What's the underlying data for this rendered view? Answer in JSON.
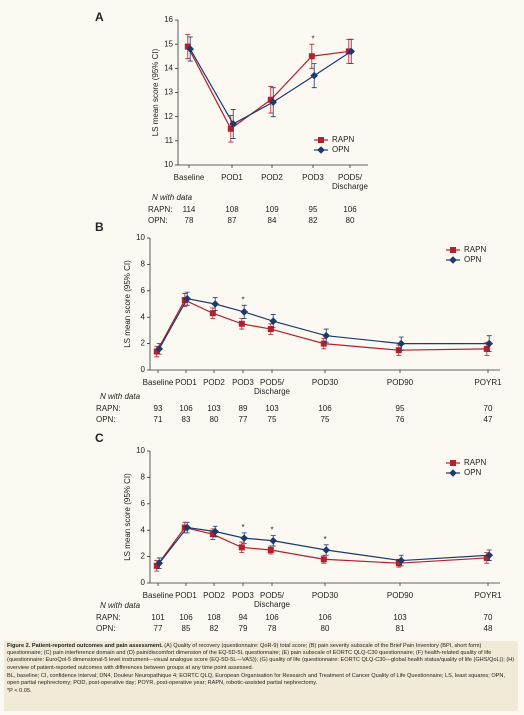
{
  "chart_data": [
    {
      "type": "line",
      "panel_label": "A",
      "ylabel": "LS mean score (95% CI)",
      "categories": [
        "Baseline",
        "POD1",
        "POD2",
        "POD3",
        "POD5/ Discharge"
      ],
      "ylim": [
        10,
        16
      ],
      "yticks": [
        10,
        11,
        12,
        13,
        14,
        15,
        16
      ],
      "legend": "lower right",
      "series": [
        {
          "name": "RAPN",
          "color": "#b3202e",
          "marker": "square",
          "values": [
            14.9,
            11.5,
            12.7,
            14.5,
            14.7
          ],
          "errors": [
            0.5,
            0.55,
            0.55,
            0.5,
            0.5
          ]
        },
        {
          "name": "OPN",
          "color": "#1d3a6b",
          "marker": "diamond",
          "values": [
            14.8,
            11.7,
            12.6,
            13.7,
            14.7
          ],
          "errors": [
            0.5,
            0.6,
            0.6,
            0.5,
            0.5
          ]
        }
      ],
      "annotations": [
        {
          "text": "*",
          "at": "POD3"
        }
      ],
      "n_data": {
        "title": "N with data",
        "rows": [
          {
            "label": "RAPN:",
            "color": "#b3202e",
            "values": [
              114,
              108,
              109,
              95,
              106
            ]
          },
          {
            "label": "OPN:",
            "color": "#1d3a6b",
            "values": [
              78,
              87,
              84,
              82,
              80
            ]
          }
        ]
      }
    },
    {
      "type": "line",
      "panel_label": "B",
      "ylabel": "LS mean score (95% CI)",
      "categories": [
        "Baseline",
        "POD1",
        "POD2",
        "POD3",
        "POD5/ Discharge",
        "POD30",
        "POD90",
        "POYR1"
      ],
      "ylim": [
        0,
        10
      ],
      "yticks": [
        0,
        2,
        4,
        6,
        8,
        10
      ],
      "legend": "upper right",
      "series": [
        {
          "name": "RAPN",
          "color": "#b3202e",
          "marker": "square",
          "values": [
            1.4,
            5.3,
            4.3,
            3.5,
            3.1,
            2.0,
            1.5,
            1.6
          ],
          "errors": [
            0.4,
            0.5,
            0.4,
            0.4,
            0.4,
            0.4,
            0.4,
            0.5
          ]
        },
        {
          "name": "OPN",
          "color": "#1d3a6b",
          "marker": "diamond",
          "values": [
            1.6,
            5.4,
            5.0,
            4.4,
            3.7,
            2.6,
            2.0,
            2.0
          ],
          "errors": [
            0.4,
            0.5,
            0.5,
            0.5,
            0.5,
            0.5,
            0.5,
            0.6
          ]
        }
      ],
      "annotations": [
        {
          "text": "*",
          "at": "POD3"
        }
      ],
      "n_data": {
        "title": "N with data",
        "rows": [
          {
            "label": "RAPN:",
            "color": "#b3202e",
            "values": [
              93,
              106,
              103,
              89,
              103,
              106,
              95,
              70
            ]
          },
          {
            "label": "OPN:",
            "color": "#1d3a6b",
            "values": [
              71,
              83,
              80,
              77,
              75,
              75,
              76,
              47
            ]
          }
        ]
      }
    },
    {
      "type": "line",
      "panel_label": "C",
      "ylabel": "LS mean score (95% CI)",
      "categories": [
        "Baseline",
        "POD1",
        "POD2",
        "POD3",
        "POD5/ Discharge",
        "POD30",
        "POD90",
        "POYR1"
      ],
      "ylim": [
        0,
        10
      ],
      "yticks": [
        0,
        2,
        4,
        6,
        8,
        10
      ],
      "legend": "upper right",
      "series": [
        {
          "name": "RAPN",
          "color": "#b3202e",
          "marker": "square",
          "values": [
            1.3,
            4.2,
            3.7,
            2.7,
            2.5,
            1.8,
            1.5,
            1.9
          ],
          "errors": [
            0.4,
            0.4,
            0.4,
            0.4,
            0.3,
            0.3,
            0.3,
            0.4
          ]
        },
        {
          "name": "OPN",
          "color": "#1d3a6b",
          "marker": "diamond",
          "values": [
            1.5,
            4.2,
            3.9,
            3.4,
            3.2,
            2.5,
            1.7,
            2.1
          ],
          "errors": [
            0.4,
            0.4,
            0.4,
            0.4,
            0.4,
            0.4,
            0.4,
            0.4
          ]
        }
      ],
      "annotations": [
        {
          "text": "*",
          "at": "POD3"
        },
        {
          "text": "*",
          "at": "POD5/ Discharge"
        },
        {
          "text": "*",
          "at": "POD30"
        }
      ],
      "n_data": {
        "title": "N with data",
        "rows": [
          {
            "label": "RAPN:",
            "color": "#b3202e",
            "values": [
              101,
              106,
              108,
              94,
              106,
              106,
              103,
              70
            ]
          },
          {
            "label": "OPN:",
            "color": "#1d3a6b",
            "values": [
              77,
              85,
              82,
              79,
              78,
              80,
              81,
              48
            ]
          }
        ]
      }
    }
  ],
  "caption": {
    "title": "Figure 2. Patient-reported outcomes and pain assessment.",
    "text": "(A) Quality of recovery (questionnaire: QoR-9) total score; (B) pain severity subscale of the Brief Pain Inventory (BPI, short form) questionnaire; (C) pain interference domain and (D) pain/discomfort dimension of the EQ-5D-5L questionnaire; (E) pain subscale of EORTC QLQ-C30 questionnaire; (F) health-related quality of life (questionnaire: EuroQol-5 dimensional-5 level instrument—visual analogue score (EQ-5D-5L—VAS)); (G) quality of life (questionnaire: EORTC QLQ-C30—global health status/quality of life (GHS/QoL)); (H) overview of patient-reported outcomes with differences between groups at any time point assessed.",
    "abbreviations": "BL, baseline; CI, confidence interval; DN4, Douleur Neuropathique 4; EORTC QLQ, European Organisation for Research and Treatment of Cancer Quality of Life Questionnaire; LS, least squares; OPN, open partial nephrectomy; POD, post-operative day; POYR, post-operative year; RAPN, robotic-assisted partial nephrectomy.",
    "note": "*P < 0.05."
  }
}
